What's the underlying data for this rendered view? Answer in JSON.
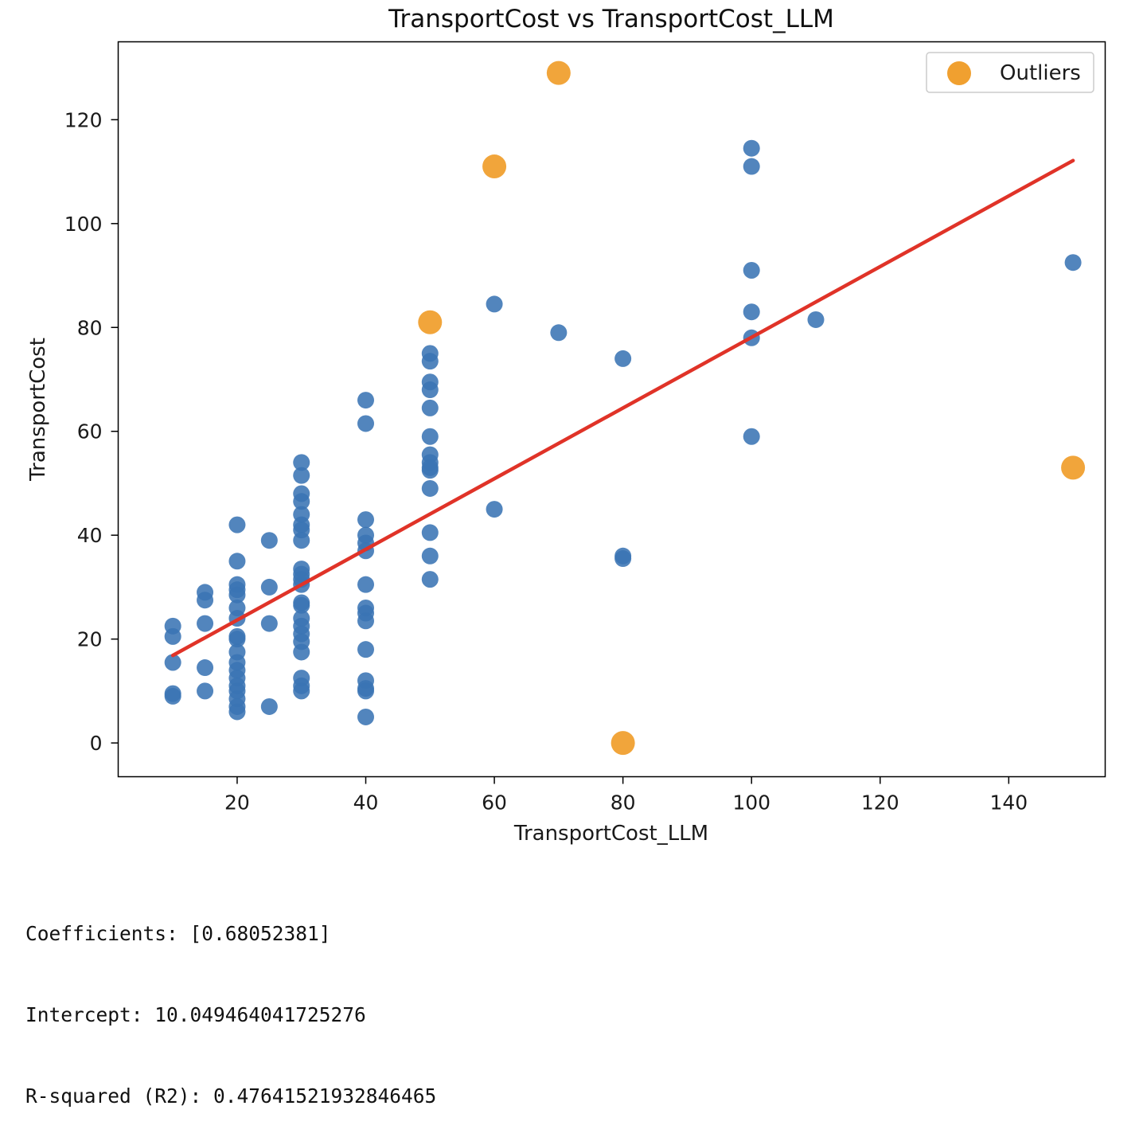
{
  "chart_data": {
    "type": "scatter",
    "title": "TransportCost vs TransportCost_LLM",
    "xlabel": "TransportCost_LLM",
    "ylabel": "TransportCost",
    "xlim": [
      1.5,
      155
    ],
    "ylim": [
      -6.5,
      135
    ],
    "xticks": [
      20,
      40,
      60,
      80,
      100,
      120,
      140
    ],
    "yticks": [
      0,
      20,
      40,
      60,
      80,
      100,
      120
    ],
    "grid": false,
    "legend": {
      "position": "top-right",
      "entries": [
        "Outliers"
      ]
    },
    "colors": {
      "points": "#3a74b4",
      "outliers": "#f0a030",
      "line": "#e03328"
    },
    "series": [
      {
        "values": [
          [
            10,
            22.5
          ],
          [
            10,
            20.5
          ],
          [
            10,
            15.5
          ],
          [
            10,
            9.5
          ],
          [
            10,
            9
          ],
          [
            15,
            29
          ],
          [
            15,
            27.5
          ],
          [
            15,
            23
          ],
          [
            15,
            14.5
          ],
          [
            15,
            10
          ],
          [
            20,
            42
          ],
          [
            20,
            35
          ],
          [
            20,
            30.5
          ],
          [
            20,
            29.5
          ],
          [
            20,
            28.5
          ],
          [
            20,
            26
          ],
          [
            20,
            24
          ],
          [
            20,
            20.5
          ],
          [
            20,
            20
          ],
          [
            20,
            17.5
          ],
          [
            20,
            15.5
          ],
          [
            20,
            14
          ],
          [
            20,
            12.5
          ],
          [
            20,
            11
          ],
          [
            20,
            10
          ],
          [
            20,
            8.5
          ],
          [
            20,
            7
          ],
          [
            20,
            6
          ],
          [
            25,
            39
          ],
          [
            25,
            30
          ],
          [
            25,
            23
          ],
          [
            25,
            7
          ],
          [
            30,
            54
          ],
          [
            30,
            51.5
          ],
          [
            30,
            48
          ],
          [
            30,
            46.5
          ],
          [
            30,
            44
          ],
          [
            30,
            42
          ],
          [
            30,
            41
          ],
          [
            30,
            39
          ],
          [
            30,
            33.5
          ],
          [
            30,
            32.5
          ],
          [
            30,
            31.5
          ],
          [
            30,
            30.5
          ],
          [
            30,
            27
          ],
          [
            30,
            26.5
          ],
          [
            30,
            24
          ],
          [
            30,
            22.5
          ],
          [
            30,
            21
          ],
          [
            30,
            19.5
          ],
          [
            30,
            17.5
          ],
          [
            30,
            12.5
          ],
          [
            30,
            11
          ],
          [
            30,
            10
          ],
          [
            40,
            66
          ],
          [
            40,
            61.5
          ],
          [
            40,
            43
          ],
          [
            40,
            40
          ],
          [
            40,
            38.5
          ],
          [
            40,
            37
          ],
          [
            40,
            30.5
          ],
          [
            40,
            26
          ],
          [
            40,
            25
          ],
          [
            40,
            23.5
          ],
          [
            40,
            18
          ],
          [
            40,
            12
          ],
          [
            40,
            10.5
          ],
          [
            40,
            10
          ],
          [
            40,
            5
          ],
          [
            50,
            75
          ],
          [
            50,
            73.5
          ],
          [
            50,
            69.5
          ],
          [
            50,
            68
          ],
          [
            50,
            64.5
          ],
          [
            50,
            59
          ],
          [
            50,
            55.5
          ],
          [
            50,
            54
          ],
          [
            50,
            53
          ],
          [
            50,
            52.5
          ],
          [
            50,
            49
          ],
          [
            50,
            40.5
          ],
          [
            50,
            36
          ],
          [
            50,
            31.5
          ],
          [
            60,
            84.5
          ],
          [
            60,
            45
          ],
          [
            70,
            79
          ],
          [
            80,
            74
          ],
          [
            80,
            36
          ],
          [
            80,
            35.5
          ],
          [
            100,
            114.5
          ],
          [
            100,
            111
          ],
          [
            100,
            91
          ],
          [
            100,
            83
          ],
          [
            100,
            78
          ],
          [
            100,
            59
          ],
          [
            110,
            81.5
          ],
          [
            150,
            92.5
          ]
        ]
      },
      {
        "name": "Outliers",
        "values": [
          [
            70,
            129
          ],
          [
            60,
            111
          ],
          [
            50,
            81
          ],
          [
            150,
            53
          ],
          [
            80,
            0
          ]
        ]
      }
    ],
    "regression": {
      "coefficient": 0.68052381,
      "intercept": 10.049464041725276,
      "x_range": [
        10,
        150
      ]
    }
  },
  "output": {
    "line1": "Coefficients: [0.68052381]",
    "line2": "Intercept: 10.049464041725276",
    "line3": "R-squared (R2): 0.47641521932846465"
  }
}
